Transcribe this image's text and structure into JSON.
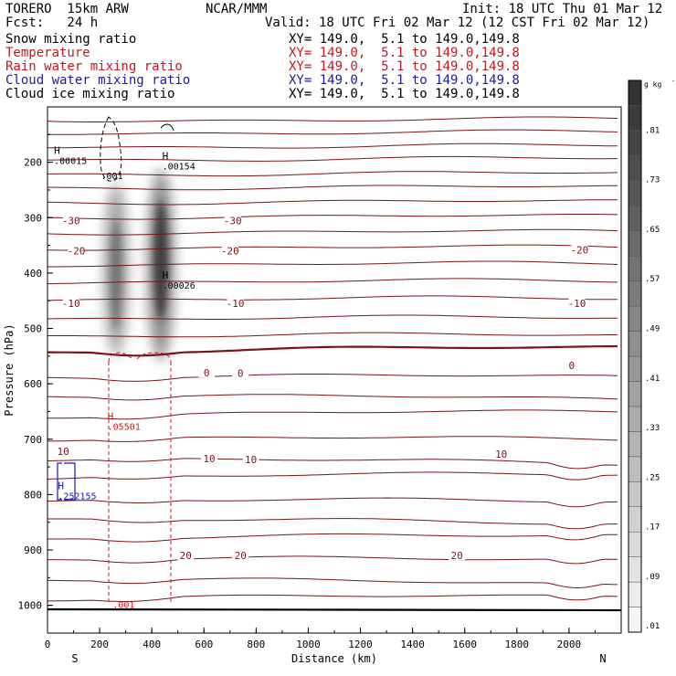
{
  "header": {
    "model": "TORERO  15km ARW",
    "org": "NCAR/MMM",
    "init": "Init: 18 UTC Thu 01 Mar 12",
    "fcst": "Fcst:   24 h",
    "valid": "Valid: 18 UTC Fri 02 Mar 12 (12 CST Fri 02 Mar 12)"
  },
  "fields": [
    {
      "name": "Snow mixing ratio",
      "xy": "XY= 149.0,  5.1 to 149.0,149.8",
      "color": "#000000"
    },
    {
      "name": "Temperature",
      "xy": "XY= 149.0,  5.1 to 149.0,149.8",
      "color": "#c8161e"
    },
    {
      "name": "Rain water mixing ratio",
      "xy": "XY= 149.0,  5.1 to 149.0,149.8",
      "color": "#c8161e"
    },
    {
      "name": "Cloud water mixing ratio",
      "xy": "XY= 149.0,  5.1 to 149.0,149.8",
      "color": "#1a1aa8"
    },
    {
      "name": "Cloud ice mixing ratio",
      "xy": "XY= 149.0,  5.1 to 149.0,149.8",
      "color": "#000000"
    }
  ],
  "chart_data": {
    "type": "cross-section",
    "xlabel": "Distance (km)",
    "ylabel": "Pressure (hPa)",
    "xlim": [
      0,
      2200
    ],
    "ylim": [
      1050,
      100
    ],
    "x_ticks": [
      "0",
      "200",
      "400",
      "600",
      "800",
      "1000",
      "1200",
      "1400",
      "1600",
      "1800",
      "2000"
    ],
    "y_ticks": [
      "200",
      "300",
      "400",
      "500",
      "600",
      "700",
      "800",
      "900",
      "1000"
    ],
    "x_tick_values": [
      0,
      200,
      400,
      600,
      800,
      1000,
      1200,
      1400,
      1600,
      1800,
      2000
    ],
    "y_tick_values": [
      200,
      300,
      400,
      500,
      600,
      700,
      800,
      900,
      1000
    ],
    "left_end": "S",
    "right_end": "N",
    "colorbar": {
      "unit": "g kg",
      "unit_exp": "-1",
      "labels": [
        ".81",
        ".73",
        ".65",
        ".57",
        ".49",
        ".41",
        ".33",
        ".25",
        ".17",
        ".09",
        ".01"
      ],
      "values": [
        0.81,
        0.73,
        0.65,
        0.57,
        0.49,
        0.41,
        0.33,
        0.25,
        0.17,
        0.09,
        0.01
      ],
      "max": 0.89
    },
    "temperature_levels": [
      {
        "value": -30,
        "labels": [
          {
            "text": "-30",
            "x": 90,
            "p": 305
          },
          {
            "text": "-30",
            "x": 710,
            "p": 305
          }
        ]
      },
      {
        "value": -20,
        "labels": [
          {
            "text": "-20",
            "x": 110,
            "p": 360
          },
          {
            "text": "-20",
            "x": 700,
            "p": 360
          },
          {
            "text": "-20",
            "x": 2040,
            "p": 358
          }
        ]
      },
      {
        "value": -10,
        "labels": [
          {
            "text": "-10",
            "x": 90,
            "p": 455
          },
          {
            "text": "-10",
            "x": 720,
            "p": 455
          },
          {
            "text": "-10",
            "x": 2030,
            "p": 455
          }
        ]
      },
      {
        "value": 0,
        "labels": [
          {
            "text": "0",
            "x": 610,
            "p": 580
          },
          {
            "text": "0",
            "x": 740,
            "p": 581
          },
          {
            "text": "0",
            "x": 2010,
            "p": 567
          }
        ]
      },
      {
        "value": 10,
        "labels": [
          {
            "text": "10",
            "x": 60,
            "p": 722
          },
          {
            "text": "10",
            "x": 620,
            "p": 735
          },
          {
            "text": "10",
            "x": 780,
            "p": 737
          },
          {
            "text": "10",
            "x": 1740,
            "p": 727
          }
        ]
      },
      {
        "value": 20,
        "labels": [
          {
            "text": "20",
            "x": 530,
            "p": 910
          },
          {
            "text": "20",
            "x": 740,
            "p": 910
          },
          {
            "text": "20",
            "x": 1570,
            "p": 910
          }
        ]
      }
    ],
    "extrema": [
      {
        "field": "snow",
        "mark": "H",
        "value": ".00015",
        "x": 25,
        "p": 185
      },
      {
        "field": "snow",
        "mark": "H",
        "value": ".00154",
        "x": 440,
        "p": 195
      },
      {
        "field": "cloud ice",
        "mark": "H",
        "value": ".00026",
        "x": 440,
        "p": 410
      },
      {
        "field": "rain",
        "mark": "H",
        "value": ".05501",
        "x": 230,
        "p": 665
      },
      {
        "field": "cloud water",
        "mark": "H",
        "value": ".252155",
        "x": 40,
        "p": 790
      }
    ],
    "contour_labels": [
      {
        "field": "snow",
        "text": ".001",
        "x": 205,
        "p": 230
      },
      {
        "field": "rain",
        "text": ".001",
        "x": 250,
        "p": 1005
      }
    ],
    "cloud_ice_max_gkg": 0.81,
    "cloud_ice_cores_km": [
      260,
      440
    ]
  }
}
